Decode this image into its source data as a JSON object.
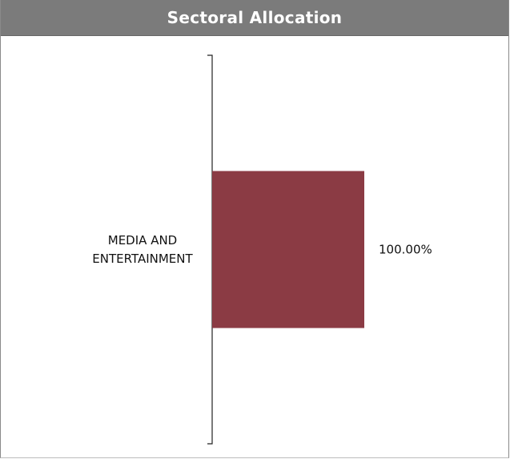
{
  "header": {
    "title": "Sectoral Allocation"
  },
  "chart_data": {
    "type": "bar",
    "orientation": "horizontal",
    "categories": [
      "MEDIA AND ENTERTAINMENT"
    ],
    "category_label_lines": [
      [
        "MEDIA AND",
        "ENTERTAINMENT"
      ]
    ],
    "values": [
      100.0
    ],
    "value_labels": [
      "100.00%"
    ],
    "xlim": [
      0,
      100
    ],
    "bar_color": "#8b3b44",
    "grid": false,
    "legend": "none"
  }
}
